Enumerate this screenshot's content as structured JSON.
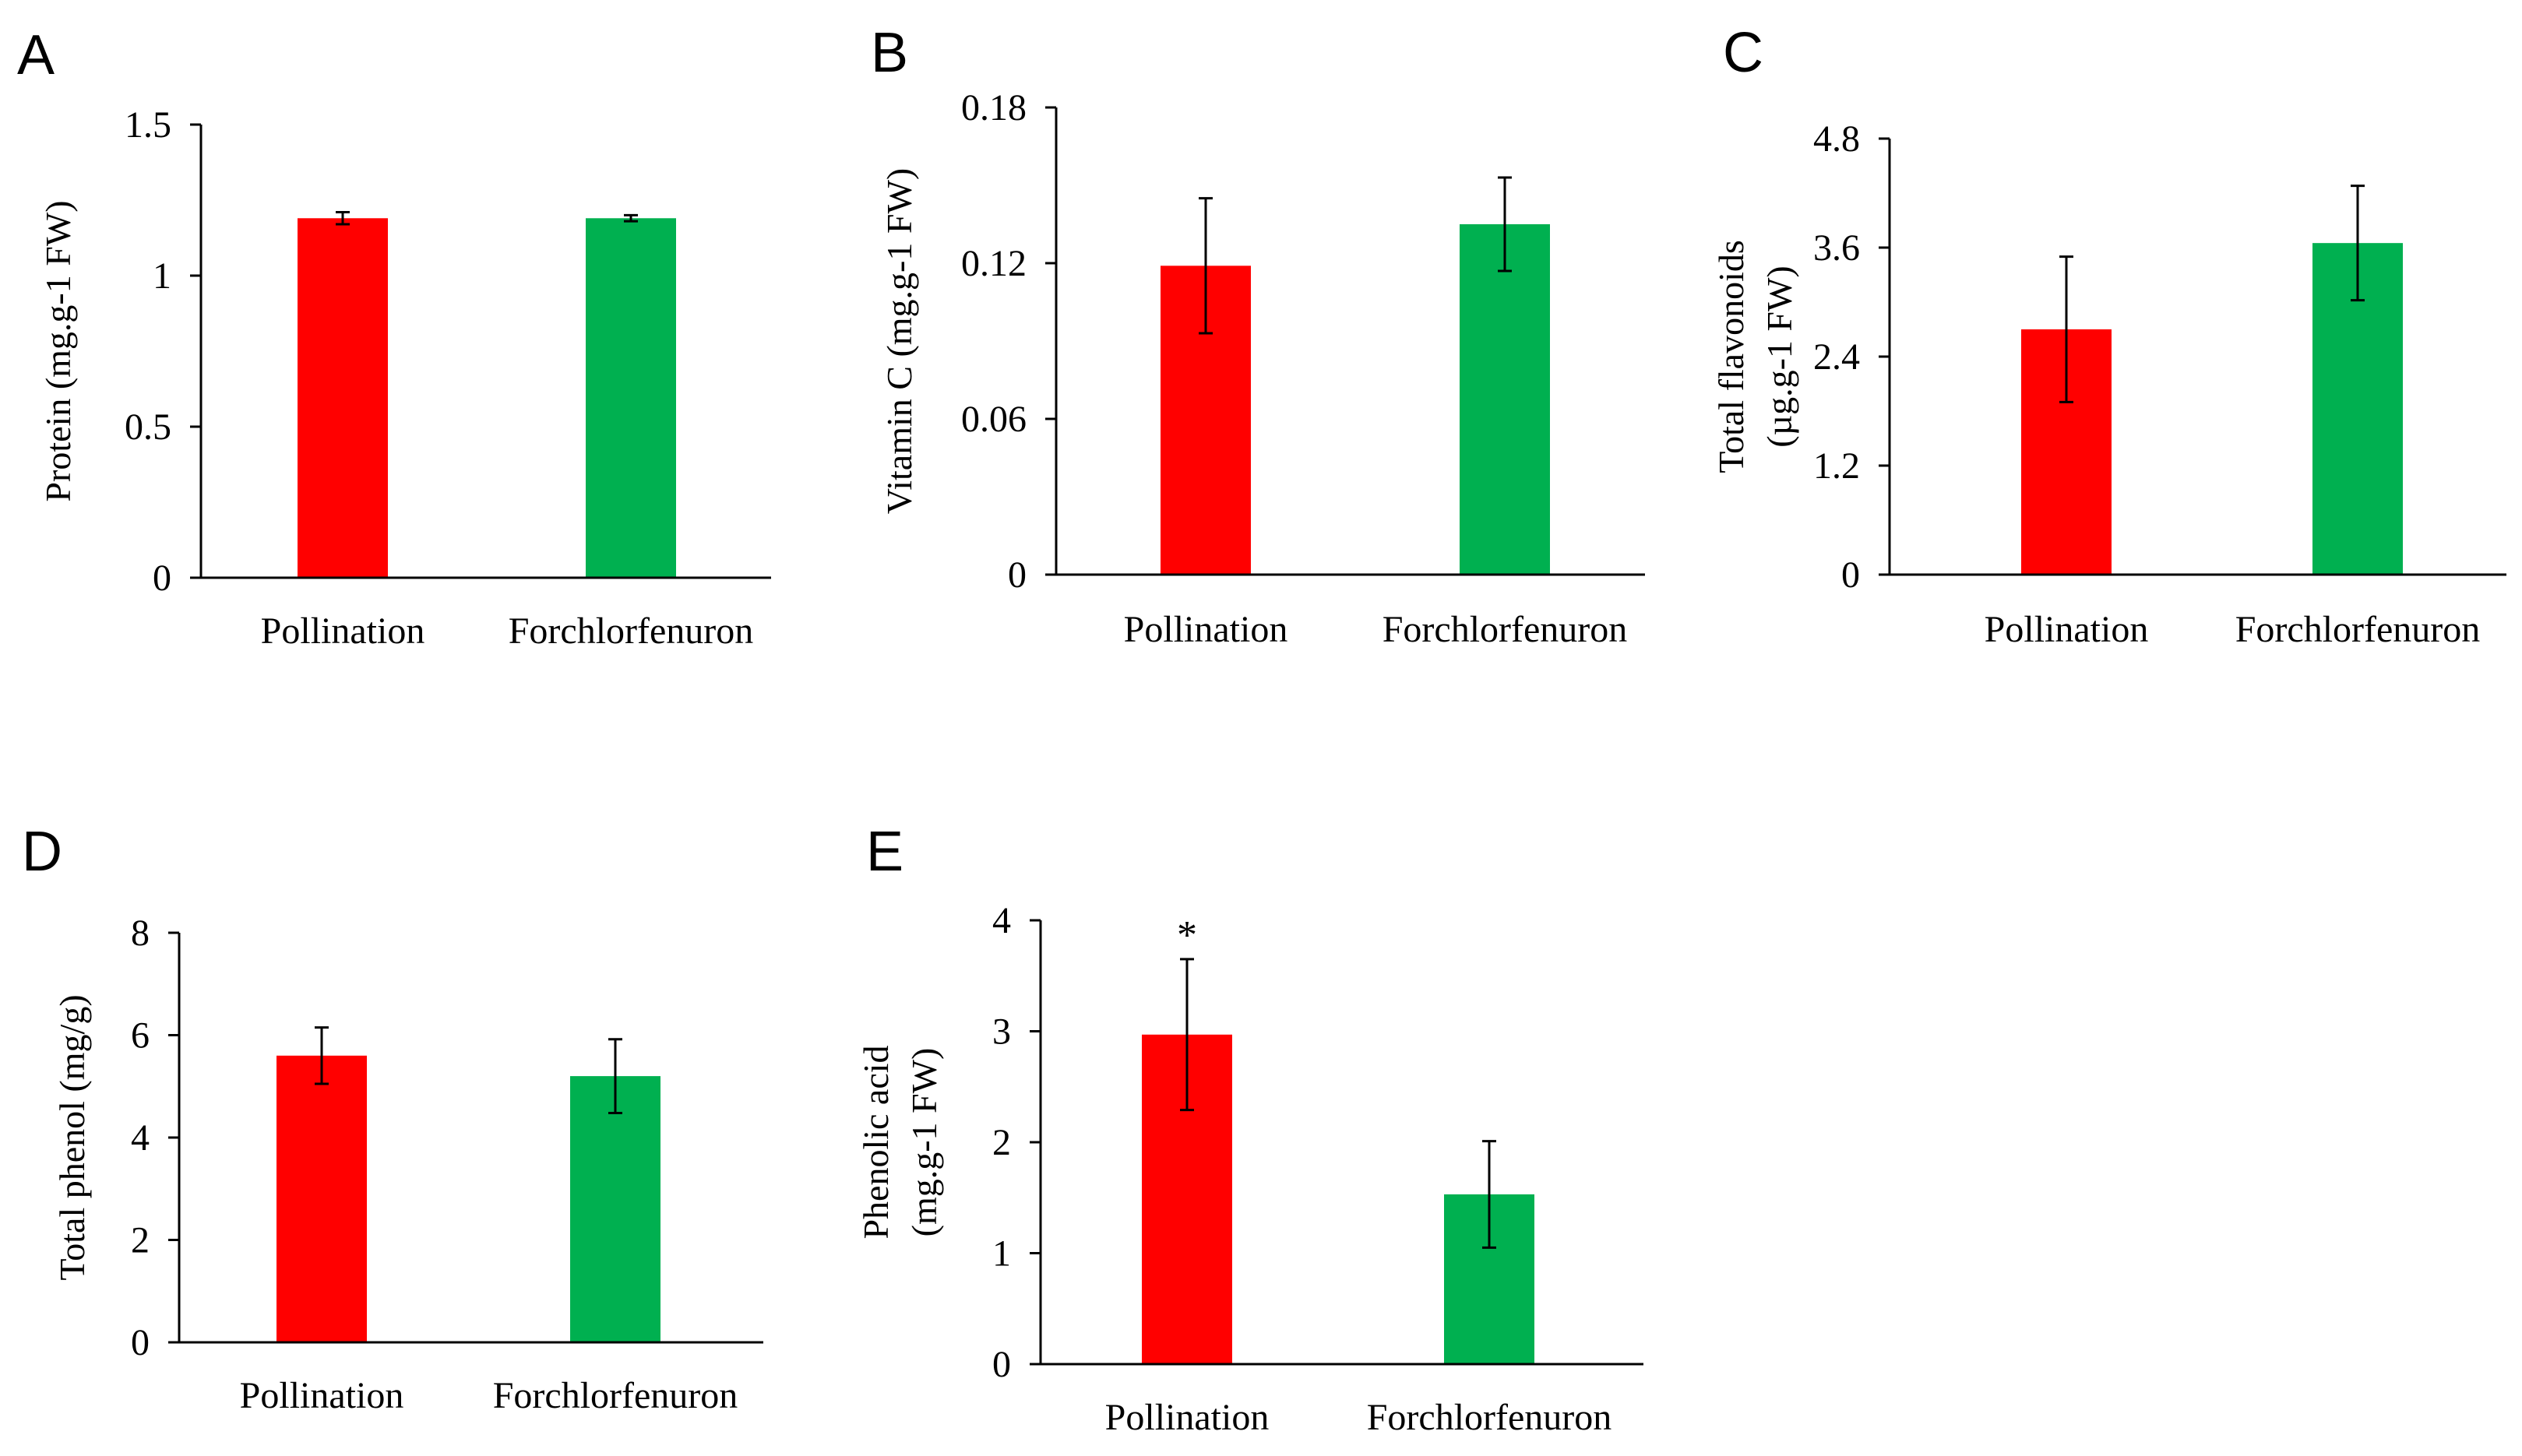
{
  "chart_data": [
    {
      "panel": "A",
      "type": "bar",
      "categories": [
        "Pollination",
        "Forchlorfenuron"
      ],
      "values": [
        1.19,
        1.19
      ],
      "errors": [
        0.02,
        0.01
      ],
      "colors": [
        "#ff0000",
        "#00b050"
      ],
      "ylabel": "Protein (mg.g-1 FW)",
      "ylabel_lines": [
        "Protein (mg.g-1 FW)"
      ],
      "ylim": [
        0,
        1.5
      ],
      "ticks": [
        0,
        0.5,
        1,
        1.5
      ],
      "tick_labels": [
        "0",
        "0.5",
        "1",
        "1.5"
      ],
      "annotations": [
        "",
        ""
      ]
    },
    {
      "panel": "B",
      "type": "bar",
      "categories": [
        "Pollination",
        "Forchlorfenuron"
      ],
      "values": [
        0.119,
        0.135
      ],
      "errors": [
        0.026,
        0.018
      ],
      "colors": [
        "#ff0000",
        "#00b050"
      ],
      "ylabel": "Vitamin C (mg.g-1 FW)",
      "ylabel_lines": [
        "Vitamin C (mg.g-1 FW)"
      ],
      "ylim": [
        0,
        0.18
      ],
      "ticks": [
        0,
        0.06,
        0.12,
        0.18
      ],
      "tick_labels": [
        "0",
        "0.06",
        "0.12",
        "0.18"
      ],
      "annotations": [
        "",
        ""
      ]
    },
    {
      "panel": "C",
      "type": "bar",
      "categories": [
        "Pollination",
        "Forchlorfenuron"
      ],
      "values": [
        2.7,
        3.65
      ],
      "errors": [
        0.8,
        0.63
      ],
      "colors": [
        "#ff0000",
        "#00b050"
      ],
      "ylabel": "Total flavonoids (µg.g-1 FW)",
      "ylabel_lines": [
        "Total flavonoids",
        "(µg.g-1 FW)"
      ],
      "ylim": [
        0,
        4.8
      ],
      "ticks": [
        0,
        1.2,
        2.4,
        3.6,
        4.8
      ],
      "tick_labels": [
        "0",
        "1.2",
        "2.4",
        "3.6",
        "4.8"
      ],
      "annotations": [
        "",
        ""
      ]
    },
    {
      "panel": "D",
      "type": "bar",
      "categories": [
        "Pollination",
        "Forchlorfenuron"
      ],
      "values": [
        5.6,
        5.2
      ],
      "errors": [
        0.55,
        0.72
      ],
      "colors": [
        "#ff0000",
        "#00b050"
      ],
      "ylabel": "Total phenol (mg/g)",
      "ylabel_lines": [
        "Total phenol (mg/g)"
      ],
      "ylim": [
        0,
        8
      ],
      "ticks": [
        0,
        2,
        4,
        6,
        8
      ],
      "tick_labels": [
        "0",
        "2",
        "4",
        "6",
        "8"
      ],
      "annotations": [
        "",
        ""
      ]
    },
    {
      "panel": "E",
      "type": "bar",
      "categories": [
        "Pollination",
        "Forchlorfenuron"
      ],
      "values": [
        2.97,
        1.53
      ],
      "errors": [
        0.68,
        0.48
      ],
      "colors": [
        "#ff0000",
        "#00b050"
      ],
      "ylabel": "Phenolic acid (mg.g-1 FW)",
      "ylabel_lines": [
        "Phenolic acid",
        "(mg.g-1 FW)"
      ],
      "ylim": [
        0,
        4
      ],
      "ticks": [
        0,
        1,
        2,
        3,
        4
      ],
      "tick_labels": [
        "0",
        "1",
        "2",
        "3",
        "4"
      ],
      "annotations": [
        "*",
        ""
      ]
    }
  ]
}
